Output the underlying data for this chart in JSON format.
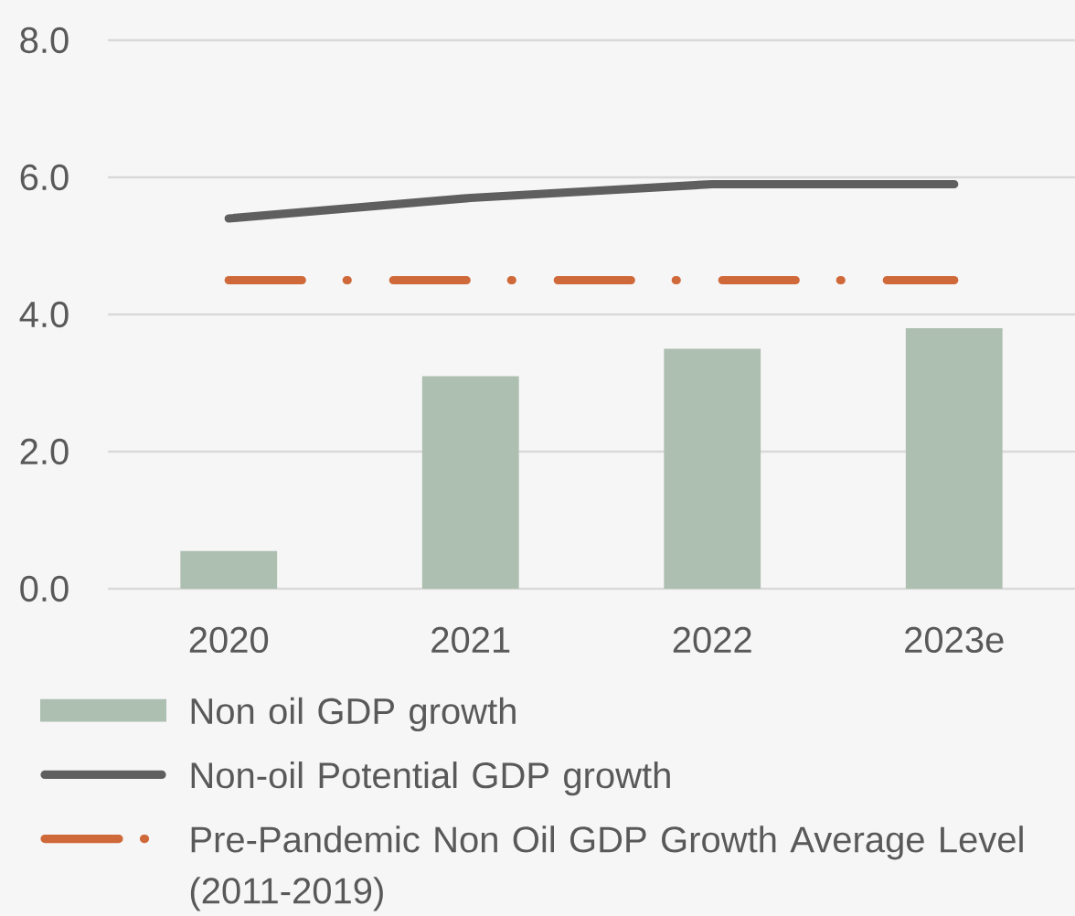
{
  "chart_data": {
    "type": "bar",
    "categories": [
      "2020",
      "2021",
      "2022",
      "2023e"
    ],
    "series": [
      {
        "name": "Non oil GDP growth",
        "color": "#adbfb0",
        "values": [
          0.55,
          3.1,
          3.5,
          3.8
        ]
      },
      {
        "name": "Non-oil Potential GDP growth",
        "type": "line",
        "color": "#5f5f5f",
        "line_style": "solid",
        "values": [
          5.4,
          5.7,
          5.9,
          5.9
        ]
      },
      {
        "name": "Pre-Pandemic Non Oil GDP Growth Average Level (2011-2019)",
        "type": "line",
        "color": "#d0693a",
        "line_style": "dashdot",
        "values": [
          4.5,
          4.5,
          4.5,
          4.5
        ]
      }
    ],
    "ylim": [
      0,
      8
    ],
    "yticks": [
      {
        "value": 0,
        "label": "0.0"
      },
      {
        "value": 2,
        "label": "2.0"
      },
      {
        "value": 4,
        "label": "4.0"
      },
      {
        "value": 6,
        "label": "6.0"
      },
      {
        "value": 8,
        "label": "8.0"
      }
    ],
    "grid": "y",
    "legend": "bottom"
  }
}
